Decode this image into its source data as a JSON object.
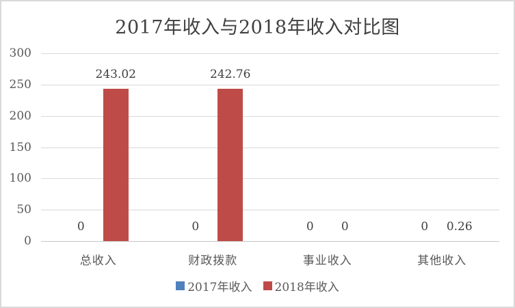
{
  "window": {
    "background": "#FFFFFF",
    "border_color": "#D9D9D9"
  },
  "chart_data": {
    "type": "bar",
    "title": "2017年收入与2018年收入对比图",
    "categories": [
      "总收入",
      "财政拨款",
      "事业收入",
      "其他收入"
    ],
    "series": [
      {
        "name": "2017年收入",
        "color": "#4F81BD",
        "values": [
          0,
          0,
          0,
          0
        ],
        "data_labels": [
          "0",
          "0",
          "0",
          "0"
        ]
      },
      {
        "name": "2018年收入",
        "color": "#BE4B48",
        "values": [
          243.02,
          242.76,
          0,
          0.26
        ],
        "data_labels": [
          "243.02",
          "242.76",
          "0",
          "0.26"
        ]
      }
    ],
    "ylim": [
      0,
      300
    ],
    "yticks": [
      0,
      50,
      100,
      150,
      200,
      250,
      300
    ],
    "xlabel": "",
    "ylabel": "",
    "grid": true,
    "legend_position": "bottom",
    "title_color": "#404040",
    "axis_text_color": "#595959",
    "data_label_color": "#404040",
    "gridline_color": "#D9D9D9",
    "axis_line_color": "#C6C6C6"
  }
}
